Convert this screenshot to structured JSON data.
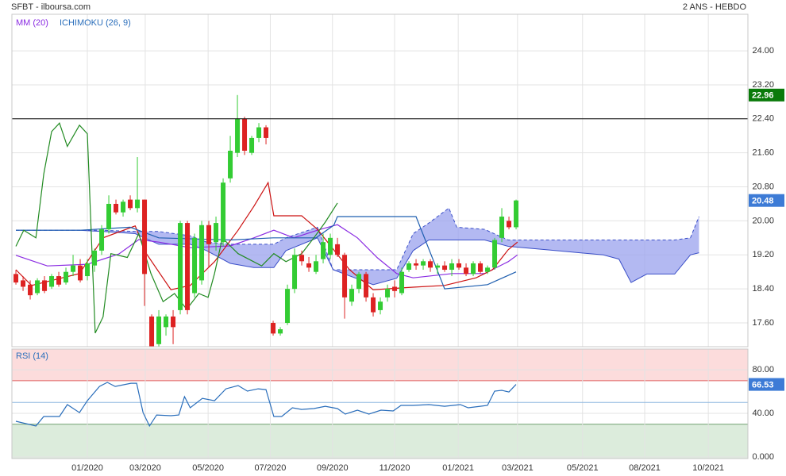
{
  "chart_data": [
    {
      "type": "candlestick",
      "title": "SFBT - ilboursa.com",
      "subtitle": "2 ANS - HEBDO",
      "legend": [
        {
          "label": "MM (20)",
          "color": "#8a2be2"
        },
        {
          "label": "ICHIMOKU (26, 9)",
          "color": "#2a6ebb"
        }
      ],
      "up_color": "#33cc33",
      "down_color": "#dd2222",
      "open": [
        18.75,
        18.6,
        18.5,
        18.3,
        18.6,
        18.45,
        18.7,
        18.55,
        18.8,
        18.95,
        18.7,
        18.95,
        19.3,
        19.8,
        20.4,
        20.2,
        20.5,
        20.3,
        20.5,
        17.75,
        17.1,
        17.5,
        17.75,
        17.9,
        19.95,
        18.3,
        18.6,
        19.9,
        19.5,
        19.5,
        21.0,
        21.6,
        22.4,
        21.6,
        21.95,
        22.2,
        17.6,
        17.35,
        17.6,
        18.4,
        19.2,
        19.0,
        18.8,
        19.1,
        19.2,
        19.45,
        19.2,
        18.1,
        18.4,
        18.75,
        18.2,
        17.9,
        18.2,
        18.45,
        18.3,
        18.85,
        19.0,
        18.95,
        19.05,
        18.9,
        18.95,
        18.85,
        19.0,
        18.9,
        18.75,
        19.0,
        18.8,
        18.9,
        19.6,
        20.0,
        19.85
      ],
      "high": [
        18.85,
        18.7,
        18.6,
        18.65,
        18.7,
        18.75,
        18.8,
        18.9,
        19.2,
        19.1,
        19.1,
        19.35,
        19.9,
        20.6,
        20.5,
        20.5,
        20.6,
        21.5,
        20.5,
        17.8,
        17.9,
        17.8,
        17.9,
        20.0,
        20.0,
        19.7,
        20.0,
        20.0,
        20.1,
        21.0,
        22.0,
        22.96,
        22.45,
        22.0,
        22.3,
        22.25,
        17.65,
        17.5,
        18.5,
        19.35,
        19.3,
        19.15,
        19.2,
        19.7,
        19.7,
        19.6,
        19.25,
        18.5,
        18.8,
        18.8,
        18.3,
        18.2,
        18.5,
        18.6,
        18.9,
        19.05,
        19.1,
        19.1,
        19.1,
        19.0,
        19.05,
        19.1,
        19.1,
        19.0,
        19.05,
        19.05,
        18.95,
        19.6,
        20.3,
        20.1,
        20.5
      ],
      "low": [
        18.5,
        18.35,
        18.15,
        18.25,
        18.3,
        18.4,
        18.45,
        18.5,
        18.7,
        18.55,
        18.6,
        18.8,
        19.2,
        19.7,
        20.15,
        20.1,
        20.25,
        20.2,
        18.0,
        16.9,
        17.0,
        17.3,
        17.1,
        17.8,
        17.8,
        18.2,
        18.5,
        18.9,
        19.3,
        19.4,
        20.9,
        21.5,
        21.55,
        21.55,
        21.85,
        21.8,
        17.3,
        17.3,
        17.55,
        18.3,
        18.95,
        18.8,
        18.75,
        19.0,
        19.1,
        19.15,
        17.7,
        18.0,
        18.3,
        18.1,
        17.75,
        17.8,
        18.1,
        18.2,
        18.25,
        18.8,
        18.85,
        18.85,
        18.8,
        18.75,
        18.8,
        18.7,
        18.85,
        18.7,
        18.7,
        18.75,
        18.75,
        18.85,
        19.5,
        19.8,
        19.8
      ],
      "close": [
        18.55,
        18.45,
        18.25,
        18.6,
        18.35,
        18.7,
        18.5,
        18.8,
        18.95,
        18.6,
        19.0,
        19.3,
        19.8,
        20.4,
        20.2,
        20.45,
        20.3,
        20.5,
        18.75,
        17.05,
        17.75,
        17.75,
        17.5,
        19.95,
        17.9,
        19.6,
        19.9,
        19.45,
        19.95,
        20.9,
        21.65,
        22.4,
        21.65,
        21.95,
        22.2,
        21.95,
        17.35,
        17.45,
        18.4,
        19.2,
        19.05,
        18.9,
        19.05,
        19.5,
        19.6,
        19.2,
        18.2,
        18.4,
        18.75,
        18.2,
        17.85,
        18.1,
        18.4,
        18.35,
        18.8,
        19.0,
        18.95,
        19.05,
        18.9,
        18.95,
        18.85,
        19.0,
        18.9,
        18.75,
        19.0,
        18.8,
        18.9,
        19.55,
        20.1,
        19.85,
        20.48
      ],
      "lines": [
        {
          "color": "#8a2be2",
          "x": [
            0,
            4.4,
            10,
            14.4,
            17.2,
            20,
            24.4,
            30,
            33.3,
            36.1,
            38.9,
            42.2,
            45,
            47.8,
            50.6,
            53.3,
            55.6,
            61.1,
            65.6,
            68.9,
            70.2
          ],
          "values": [
            19.19,
            18.94,
            18.98,
            19.22,
            19.56,
            19.5,
            19.37,
            19.41,
            19.6,
            19.78,
            19.6,
            19.78,
            19.91,
            19.6,
            19.13,
            18.76,
            18.66,
            18.76,
            18.76,
            19.04,
            19.2
          ]
        },
        {
          "color": "#cc1111",
          "x": [
            0,
            2.2,
            8.9,
            12.2,
            16.7,
            18.3,
            21.7,
            24.4,
            27.8,
            31.1,
            33.3,
            35.3,
            36.1,
            40,
            42.2,
            46.7,
            50,
            55.6,
            60,
            64.4,
            66.7,
            68.9,
            70.2
          ],
          "values": [
            18.85,
            18.48,
            18.76,
            19.6,
            19.88,
            19.22,
            18.38,
            18.48,
            19.04,
            19.78,
            20.34,
            20.9,
            20.12,
            20.12,
            19.8,
            18.85,
            18.38,
            18.44,
            18.48,
            18.66,
            18.85,
            19.32,
            19.5
          ]
        },
        {
          "color": "#1f5fb0",
          "x": [
            0,
            9,
            16,
            20,
            30,
            36,
            42,
            44.5,
            45,
            56,
            60,
            66,
            70
          ],
          "values": [
            19.78,
            19.78,
            19.85,
            19.6,
            19.55,
            19.6,
            19.6,
            19.9,
            20.1,
            20.1,
            18.4,
            18.5,
            18.8
          ]
        },
        {
          "color": "#228b22",
          "x": [
            0,
            1.1,
            2.8,
            3.9,
            5,
            6.1,
            7.2,
            8.9,
            10,
            11.1,
            12.2,
            13.3,
            15.6,
            17.2,
            18.9,
            20.6,
            22.2,
            23.9,
            25.6,
            26.9,
            27.8,
            28.9,
            30,
            31.1,
            34.4,
            36.1,
            37.8,
            40,
            41.7,
            43.3,
            45
          ],
          "values": [
            19.4,
            19.78,
            19.6,
            21.1,
            22.1,
            22.3,
            21.75,
            22.25,
            22.05,
            17.36,
            17.74,
            19.23,
            19.14,
            19.7,
            18.76,
            18.1,
            18.29,
            17.92,
            18.29,
            18.2,
            18.76,
            19.6,
            19.41,
            19.23,
            18.94,
            19.23,
            19.04,
            19.23,
            19.6,
            19.97,
            20.42
          ]
        }
      ],
      "cloud": {
        "color": "#9aa2ee",
        "line_color": "#3a4fc8",
        "x": [
          0,
          8.9,
          12.2,
          16.7,
          20,
          24.4,
          26.7,
          30,
          33.3,
          36.1,
          37.8,
          42.2,
          44.4,
          50,
          53.3,
          55.6,
          57.8,
          60.6,
          61.7,
          65.6,
          68.9,
          75.6,
          78.9,
          82.2,
          84.4,
          86.1,
          88.3,
          92.2,
          94.4,
          95.6
        ],
        "span_a": [
          19.78,
          19.78,
          19.78,
          19.75,
          19.75,
          19.65,
          19.5,
          19.45,
          19.45,
          19.45,
          19.6,
          19.85,
          18.85,
          18.85,
          18.85,
          19.7,
          19.95,
          20.3,
          19.85,
          19.8,
          19.55,
          19.55,
          19.55,
          19.55,
          19.55,
          19.55,
          19.55,
          19.55,
          19.6,
          20.1
        ],
        "span_b": [
          19.78,
          19.78,
          19.75,
          19.7,
          19.45,
          19.45,
          19.3,
          19.0,
          18.9,
          18.9,
          19.3,
          19.6,
          18.85,
          18.5,
          18.65,
          19.3,
          19.55,
          19.55,
          19.55,
          19.55,
          19.4,
          19.3,
          19.25,
          19.2,
          19.1,
          18.55,
          18.75,
          18.75,
          19.2,
          19.25
        ]
      },
      "hline": 22.4,
      "xlim": [
        -0.56,
        102.44
      ],
      "ylim": [
        17.04,
        24.86
      ],
      "yticks": [
        {
          "value": 17.6,
          "label": "17.60"
        },
        {
          "value": 18.4,
          "label": "18.40"
        },
        {
          "value": 19.2,
          "label": "19.20"
        },
        {
          "value": 20,
          "label": "20.00"
        },
        {
          "value": 20.8,
          "label": "20.80"
        },
        {
          "value": 21.6,
          "label": "21.60"
        },
        {
          "value": 22.4,
          "label": "22.40"
        },
        {
          "value": 23.2,
          "label": "23.20"
        },
        {
          "value": 24,
          "label": "24.00"
        }
      ],
      "grid": true
    },
    {
      "type": "line",
      "title": "RSI (14)",
      "color": "#2a6ebb",
      "x": [
        0,
        2.8,
        3.9,
        6.1,
        7.2,
        8.9,
        10,
        11.7,
        12.8,
        13.9,
        16.1,
        16.9,
        17.8,
        18.7,
        19.7,
        21.7,
        22.8,
        23.6,
        24.4,
        26.1,
        27.8,
        29.4,
        31.1,
        32.4,
        33.9,
        35,
        36.1,
        37.2,
        38.7,
        40,
        41.7,
        43.3,
        45,
        46.1,
        47.8,
        49.4,
        51.1,
        52.8,
        53.9,
        55.6,
        57.8,
        60,
        62.2,
        63.3,
        65,
        66,
        67,
        68,
        69,
        70
      ],
      "values": [
        32.7,
        28.4,
        37.1,
        37.1,
        48,
        40.7,
        51.6,
        64.7,
        68.4,
        64.7,
        67.6,
        67.6,
        40.7,
        28.4,
        38.5,
        37.8,
        38.5,
        55.3,
        45.1,
        53.8,
        51.6,
        62.5,
        65.5,
        60.4,
        62.5,
        61.8,
        37.1,
        37.1,
        45.1,
        43.6,
        44.4,
        46.5,
        44.4,
        39.3,
        42.9,
        39.3,
        42.9,
        42.2,
        47.3,
        47.3,
        48,
        46.5,
        48,
        45.1,
        46.5,
        47.3,
        60.4,
        61.1,
        59.6,
        66.53
      ],
      "overbought": 70,
      "oversold": 30,
      "midline": 50,
      "xlim": [
        -0.56,
        102.44
      ],
      "ylim": [
        -1.5,
        99
      ],
      "xticks": [
        {
          "value": 10,
          "label": "01/2020"
        },
        {
          "value": 18.1,
          "label": "03/2020"
        },
        {
          "value": 26.9,
          "label": "05/2020"
        },
        {
          "value": 35.6,
          "label": "07/2020"
        },
        {
          "value": 44.3,
          "label": "09/2020"
        },
        {
          "value": 53,
          "label": "11/2020"
        },
        {
          "value": 61.9,
          "label": "01/2021"
        },
        {
          "value": 70.2,
          "label": "03/2021"
        },
        {
          "value": 79.3,
          "label": "05/2021"
        },
        {
          "value": 88,
          "label": "08/2021"
        },
        {
          "value": 96.9,
          "label": "10/2021"
        }
      ],
      "yticks": [
        {
          "value": 0,
          "label": "0.000"
        },
        {
          "value": 40,
          "label": "40.00"
        },
        {
          "value": 80,
          "label": "80.00"
        }
      ],
      "grid": true
    }
  ]
}
